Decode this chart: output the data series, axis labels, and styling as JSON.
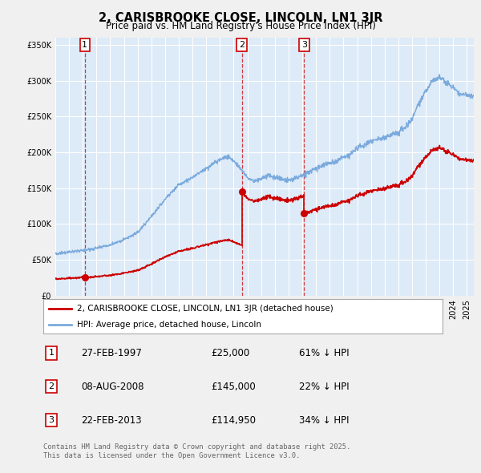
{
  "title": "2, CARISBROOKE CLOSE, LINCOLN, LN1 3JR",
  "subtitle": "Price paid vs. HM Land Registry's House Price Index (HPI)",
  "bg_color": "#f0f0f0",
  "plot_bg_color": "#ddeaf7",
  "red_color": "#cc0000",
  "blue_color": "#7aaadd",
  "grid_color": "#ffffff",
  "ylim": [
    0,
    360000
  ],
  "yticks": [
    0,
    50000,
    100000,
    150000,
    200000,
    250000,
    300000,
    350000
  ],
  "purchases": [
    {
      "date_num": 1997.15,
      "price": 25000,
      "label": "1"
    },
    {
      "date_num": 2008.6,
      "price": 145000,
      "label": "2"
    },
    {
      "date_num": 2013.14,
      "price": 114950,
      "label": "3"
    }
  ],
  "table_rows": [
    {
      "num": "1",
      "date": "27-FEB-1997",
      "price": "£25,000",
      "pct": "61% ↓ HPI"
    },
    {
      "num": "2",
      "date": "08-AUG-2008",
      "price": "£145,000",
      "pct": "22% ↓ HPI"
    },
    {
      "num": "3",
      "date": "22-FEB-2013",
      "price": "£114,950",
      "pct": "34% ↓ HPI"
    }
  ],
  "legend_entries": [
    "2, CARISBROOKE CLOSE, LINCOLN, LN1 3JR (detached house)",
    "HPI: Average price, detached house, Lincoln"
  ],
  "footer": "Contains HM Land Registry data © Crown copyright and database right 2025.\nThis data is licensed under the Open Government Licence v3.0.",
  "xmin": 1995,
  "xmax": 2025.5,
  "hpi_keypoints": [
    [
      1995.0,
      58000
    ],
    [
      1996.0,
      61000
    ],
    [
      1997.0,
      63000
    ],
    [
      1998.0,
      66000
    ],
    [
      1999.0,
      71000
    ],
    [
      2000.0,
      78000
    ],
    [
      2001.0,
      88000
    ],
    [
      2002.0,
      110000
    ],
    [
      2003.0,
      135000
    ],
    [
      2004.0,
      155000
    ],
    [
      2005.0,
      165000
    ],
    [
      2006.0,
      178000
    ],
    [
      2007.0,
      190000
    ],
    [
      2007.6,
      195000
    ],
    [
      2008.0,
      188000
    ],
    [
      2008.5,
      178000
    ],
    [
      2009.0,
      165000
    ],
    [
      2009.5,
      160000
    ],
    [
      2010.0,
      163000
    ],
    [
      2010.5,
      168000
    ],
    [
      2011.0,
      165000
    ],
    [
      2011.5,
      163000
    ],
    [
      2012.0,
      161000
    ],
    [
      2012.5,
      163000
    ],
    [
      2013.0,
      168000
    ],
    [
      2013.5,
      172000
    ],
    [
      2014.0,
      178000
    ],
    [
      2014.5,
      182000
    ],
    [
      2015.0,
      185000
    ],
    [
      2015.5,
      188000
    ],
    [
      2016.0,
      193000
    ],
    [
      2016.5,
      198000
    ],
    [
      2017.0,
      205000
    ],
    [
      2017.5,
      210000
    ],
    [
      2018.0,
      215000
    ],
    [
      2018.5,
      218000
    ],
    [
      2019.0,
      220000
    ],
    [
      2019.5,
      225000
    ],
    [
      2020.0,
      228000
    ],
    [
      2020.5,
      235000
    ],
    [
      2021.0,
      248000
    ],
    [
      2021.5,
      268000
    ],
    [
      2022.0,
      285000
    ],
    [
      2022.5,
      300000
    ],
    [
      2023.0,
      305000
    ],
    [
      2023.5,
      298000
    ],
    [
      2024.0,
      290000
    ],
    [
      2024.5,
      282000
    ],
    [
      2025.0,
      280000
    ],
    [
      2025.5,
      278000
    ]
  ]
}
